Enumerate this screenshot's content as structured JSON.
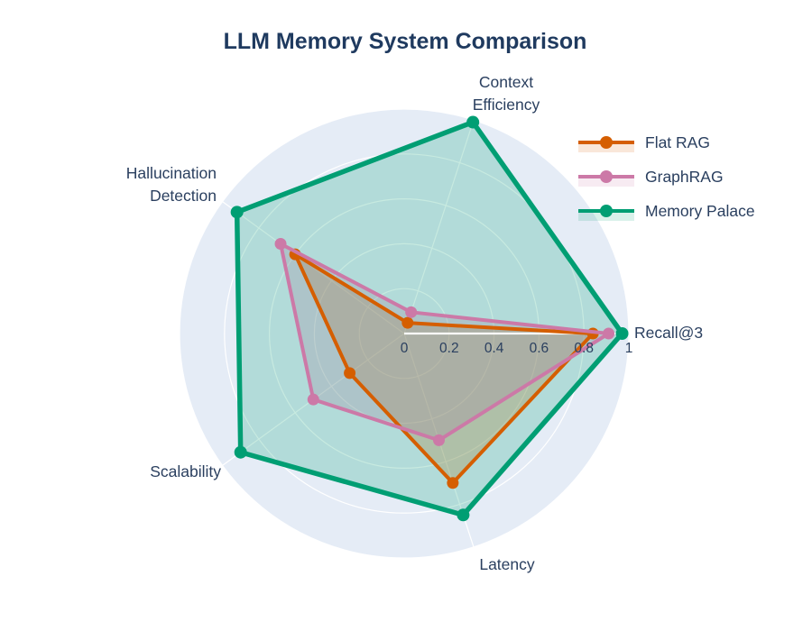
{
  "title": "LLM Memory System Comparison",
  "chart_data": {
    "type": "radar",
    "title": "LLM Memory System Comparison",
    "axes": [
      "Recall@3",
      "Context Efficiency",
      "Hallucination Detection",
      "Scalability",
      "Latency"
    ],
    "axis_label_lines": [
      [
        "Recall@3"
      ],
      [
        "Context",
        "Efficiency"
      ],
      [
        "Hallucination",
        "Detection"
      ],
      [
        "Scalability"
      ],
      [
        "Latency"
      ]
    ],
    "radial_ticks": [
      "0",
      "0.2",
      "0.4",
      "0.6",
      "0.8",
      "1"
    ],
    "radial_tick_values": [
      0,
      0.2,
      0.4,
      0.6,
      0.8,
      1
    ],
    "radial_range": [
      0,
      1
    ],
    "grid": "white circular grid with radial spokes",
    "plot_bg_color": "#E5ECF6",
    "text_color": "#2a3f5f",
    "legend_position": "top-right",
    "series": [
      {
        "name": "Flat RAG",
        "color": "#D55E00",
        "values": [
          0.84,
          0.05,
          0.6,
          0.3,
          0.7
        ]
      },
      {
        "name": "GraphRAG",
        "color": "#CC79A7",
        "values": [
          0.91,
          0.1,
          0.68,
          0.5,
          0.5
        ]
      },
      {
        "name": "Memory Palace",
        "color": "#009E73",
        "values": [
          0.97,
          0.99,
          0.92,
          0.9,
          0.85
        ]
      }
    ]
  }
}
